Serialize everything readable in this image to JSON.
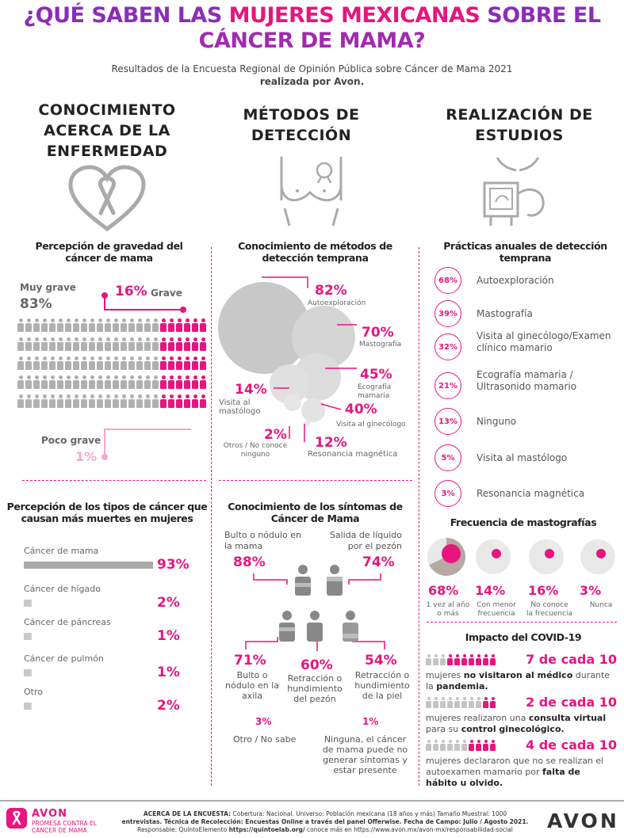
{
  "header": {
    "title_a": "¿QUÉ SABEN LAS ",
    "title_b": "MUJERES MEXICANAS",
    "title_c": " SOBRE EL",
    "title_d": "CÁNCER DE MAMA?",
    "subtitle_1": "Resultados de la Encuesta Regional de Opinión Pública sobre Cáncer de Mama 2021",
    "subtitle_2": "realizada por Avon."
  },
  "sections": {
    "s1": "CONOCIMIENTO ACERCA DE LA ENFERMEDAD",
    "s2": "MÉTODOS DE DETECCIÓN",
    "s3": "REALIZACIÓN DE ESTUDIOS"
  },
  "gravedad": {
    "title": "Percepción de gravedad del cáncer de mama",
    "muy_label": "Muy grave",
    "muy_value": "83%",
    "grave_value": "16%",
    "grave_label": "Grave",
    "poco_label": "Poco grave",
    "poco_value": "1%"
  },
  "metodos": {
    "title": "Conocimiento de métodos de detección temprana",
    "items": [
      {
        "value": "82%",
        "label": "Autoexploración"
      },
      {
        "value": "70%",
        "label": "Mastografía"
      },
      {
        "value": "45%",
        "label": "Ecografía mamaria"
      },
      {
        "value": "40%",
        "label": "Visita al ginecólogo"
      },
      {
        "value": "14%",
        "label": "Visita al mastólogo"
      },
      {
        "value": "2%",
        "label": "Otros / No conoce ninguno"
      },
      {
        "value": "12%",
        "label": "Resonancia magnética"
      }
    ]
  },
  "practicas": {
    "title": "Prácticas anuales de detección temprana",
    "items": [
      {
        "value": "68%",
        "label": "Autoexploración"
      },
      {
        "value": "39%",
        "label": "Mastografía"
      },
      {
        "value": "32%",
        "label": "Visita al ginecólogo/Examen clínico mamario"
      },
      {
        "value": "21%",
        "label": "Ecografía mamaria / Ultrasonido mamario"
      },
      {
        "value": "13%",
        "label": "Ninguno"
      },
      {
        "value": "5%",
        "label": "Visita al mastólogo"
      },
      {
        "value": "3%",
        "label": "Resonancia magnética"
      }
    ]
  },
  "frecuencia": {
    "title": "Frecuencia de mastografías",
    "items": [
      {
        "value": "68%",
        "label": "1 vez al año o más",
        "fraction": 0.68
      },
      {
        "value": "14%",
        "label": "Con menor frecuencia",
        "fraction": 0.14
      },
      {
        "value": "16%",
        "label": "No conoce la frecuencia",
        "fraction": 0.16
      },
      {
        "value": "3%",
        "label": "Nunca",
        "fraction": 0.03
      }
    ]
  },
  "tipos": {
    "title": "Percepción de los tipos de cáncer que causan más muertes en mujeres",
    "items": [
      {
        "label": "Cáncer de mama",
        "value": "93%",
        "fraction": 0.93
      },
      {
        "label": "Cáncer de hígado",
        "value": "2%",
        "fraction": 0.02
      },
      {
        "label": "Cáncer de páncreas",
        "value": "1%",
        "fraction": 0.01
      },
      {
        "label": "Cáncer de pulmón",
        "value": "1%",
        "fraction": 0.01
      },
      {
        "label": "Otro",
        "value": "2%",
        "fraction": 0.02
      }
    ]
  },
  "sintomas": {
    "title": "Conocimiento de los síntomas de Cáncer de Mama",
    "bulto_label": "Bulto o nódulo en la mama",
    "bulto_value": "88%",
    "salida_label": "Salida de líquido por el pezón",
    "salida_value": "74%",
    "axila_value": "71%",
    "axila_label": "Bulto o nódulo en la axila",
    "pezon_value": "60%",
    "pezon_label": "Retracción o hundimiento del pezón",
    "piel_value": "54%",
    "piel_label": "Retracción o hundimiento de la piel",
    "otro_value": "3%",
    "otro_label": "Otro / No sabe",
    "ninguna_value": "1%",
    "ninguna_label": "Ninguna, el cáncer de mama puede no generar síntomas y estar presente"
  },
  "covid": {
    "title": "Impacto del COVID-19",
    "items": [
      {
        "count": "7 de cada 10",
        "count_n": 7,
        "t1": "mujeres ",
        "b1": "no visitaron al médico",
        "t2": " durante la ",
        "b2": "pandemia."
      },
      {
        "count": "2 de cada 10",
        "count_n": 2,
        "t1": "mujeres realizaron una ",
        "b1": "consulta virtual",
        "t2": " para su ",
        "b2": "control ginecológico."
      },
      {
        "count": "4 de cada 10",
        "count_n": 4,
        "t1": "mujeres declararon que no se realizan el autoexamen mamario por ",
        "b1": "falta de hábito u olvido.",
        "t2": "",
        "b2": ""
      }
    ]
  },
  "footer": {
    "brand": "AVON",
    "promise": "PROMESA CONTRA EL CÁNCER DE MAMA",
    "about_b": "ACERCA DE LA ENCUESTA:",
    "about": " Cobertura: Nacional. Universo: Población mexicana (18 años y más) Tamaño Muestral: 1000",
    "about2_b": "entrevistas.",
    "about2": " Técnica de Recolección: Encuestas Online a través del panel Offerwise. Fecha de Campo: Julio / Agosto 2021.",
    "resp": "Responsable: QuintoElemento ",
    "resp_link": "https://quintoelab.org/",
    "resp2": " conoce más en ",
    "resp_link2": "https://www.avon.mx/avon-mx/responsabilidad-social",
    "logo": "AVON"
  },
  "colors": {
    "pink": "#e6157f",
    "purple": "#8c2cb8",
    "grey": "#b0b0b0"
  }
}
